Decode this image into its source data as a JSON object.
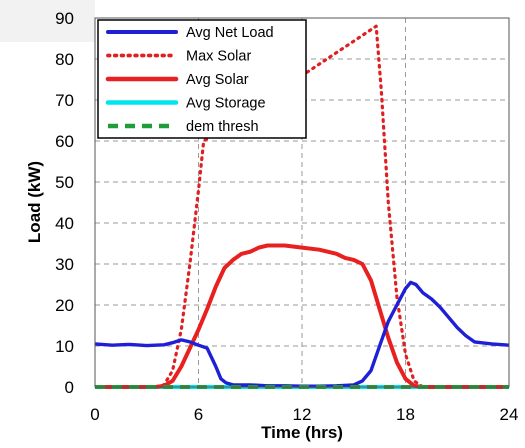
{
  "chart_data": {
    "type": "line",
    "xlabel": "Time (hrs)",
    "ylabel": "Load (kW)",
    "xlim": [
      0,
      24
    ],
    "ylim": [
      0,
      90
    ],
    "xticks": [
      0,
      6,
      12,
      18,
      24
    ],
    "yticks": [
      0,
      10,
      20,
      30,
      40,
      50,
      60,
      70,
      80,
      90
    ],
    "grid": true,
    "legend_position": "top-left",
    "series": [
      {
        "name": "Avg Net Load",
        "color": "#1f1fd6",
        "style": "solid",
        "x": [
          0,
          1,
          2,
          3,
          4,
          4.5,
          5,
          5.5,
          6,
          6.5,
          7,
          7.3,
          7.6,
          8,
          9,
          10,
          11,
          12,
          13,
          14,
          15,
          15.5,
          16,
          16.5,
          17,
          17.5,
          18,
          18.3,
          18.6,
          19,
          19.5,
          20,
          20.5,
          21,
          21.5,
          22,
          23,
          24
        ],
        "y": [
          10.5,
          10.2,
          10.4,
          10.1,
          10.3,
          10.8,
          11.5,
          11.0,
          10.2,
          9.5,
          5.0,
          2.0,
          1.0,
          0.5,
          0.5,
          0.3,
          0.3,
          0.2,
          0.2,
          0.3,
          0.5,
          1.5,
          4.0,
          10.0,
          16.0,
          20.0,
          24.0,
          25.5,
          25.0,
          23.0,
          21.5,
          19.5,
          17.0,
          14.5,
          12.5,
          11.0,
          10.5,
          10.2
        ]
      },
      {
        "name": "Max Solar",
        "color": "#e02020",
        "style": "dotted",
        "x": [
          0,
          3.5,
          4,
          4.5,
          5,
          5.5,
          6,
          6.3,
          16.3,
          16.6,
          17,
          17.5,
          18,
          18.5,
          19,
          24
        ],
        "y": [
          0,
          0,
          0.5,
          4,
          14,
          30,
          48,
          60,
          88,
          72,
          45,
          22,
          8,
          1.5,
          0,
          0
        ]
      },
      {
        "name": "Avg Solar",
        "color": "#e82020",
        "style": "solid",
        "x": [
          0,
          3.5,
          4,
          4.5,
          5,
          5.5,
          6,
          6.5,
          7,
          7.5,
          8,
          8.5,
          9,
          9.5,
          10,
          11,
          12,
          13,
          14,
          14.5,
          15,
          15.5,
          16,
          16.5,
          17,
          17.5,
          18,
          18.5,
          19,
          24
        ],
        "y": [
          0,
          0,
          0.3,
          1.5,
          5,
          9.5,
          14,
          19,
          24.5,
          29,
          31,
          32.5,
          33,
          34,
          34.5,
          34.5,
          34,
          33.5,
          32.5,
          31.5,
          31,
          30,
          26,
          19,
          12,
          6,
          2,
          0.3,
          0,
          0
        ]
      },
      {
        "name": "Avg Storage",
        "color": "#00e5ee",
        "style": "solid",
        "x": [
          0,
          24
        ],
        "y": [
          0,
          0
        ]
      },
      {
        "name": "dem thresh",
        "color": "#1e9e3a",
        "style": "dashed",
        "x": [
          0,
          24
        ],
        "y": [
          0,
          0
        ]
      }
    ]
  }
}
